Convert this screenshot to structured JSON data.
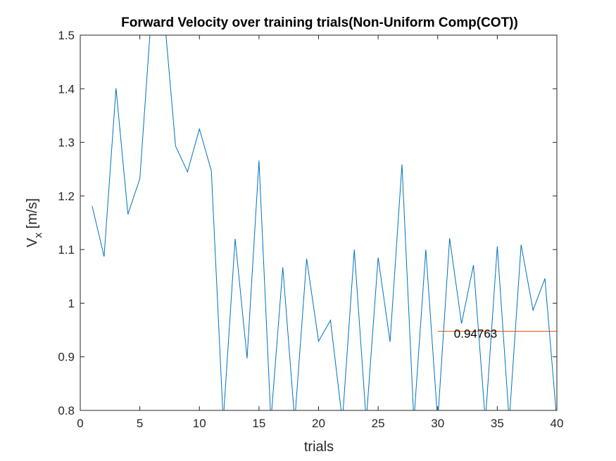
{
  "chart_data": {
    "type": "line",
    "title": "Forward Velocity over training trials(Non-Uniform Comp(COT))",
    "xlabel": "trials",
    "ylabel_main": "V",
    "ylabel_sub": "x",
    "ylabel_unit": " [m/s]",
    "xlim": [
      0,
      40
    ],
    "ylim": [
      0.8,
      1.5
    ],
    "xticks": [
      0,
      5,
      10,
      15,
      20,
      25,
      30,
      35,
      40
    ],
    "yticks": [
      0.8,
      0.9,
      1,
      1.1,
      1.2,
      1.3,
      1.4,
      1.5
    ],
    "grid": false,
    "series": [
      {
        "color": "#0072BD",
        "x": [
          1,
          2,
          3,
          4,
          5,
          6,
          7,
          8,
          9,
          10,
          11,
          12,
          13,
          14,
          15,
          16,
          17,
          18,
          19,
          20,
          21,
          22,
          23,
          24,
          25,
          26,
          27,
          28,
          29,
          30,
          31,
          32,
          33,
          34,
          35,
          36,
          37,
          38,
          39,
          40
        ],
        "values": [
          1.181,
          1.087,
          1.401,
          1.166,
          1.232,
          1.55,
          1.55,
          1.293,
          1.245,
          1.325,
          1.247,
          0.78,
          1.12,
          0.897,
          1.266,
          0.78,
          1.067,
          0.78,
          1.083,
          0.929,
          0.968,
          0.78,
          1.1,
          0.78,
          1.085,
          0.928,
          1.259,
          0.78,
          1.1,
          0.78,
          1.121,
          0.962,
          1.071,
          0.78,
          1.106,
          0.78,
          1.109,
          0.987,
          1.046,
          0.78
        ]
      },
      {
        "color": "#D95319",
        "x": [
          30,
          40
        ],
        "values": [
          0.94763,
          0.94763
        ]
      }
    ],
    "annotations": [
      {
        "text": "0.94763",
        "x": 33,
        "y": 0.94763
      }
    ]
  }
}
